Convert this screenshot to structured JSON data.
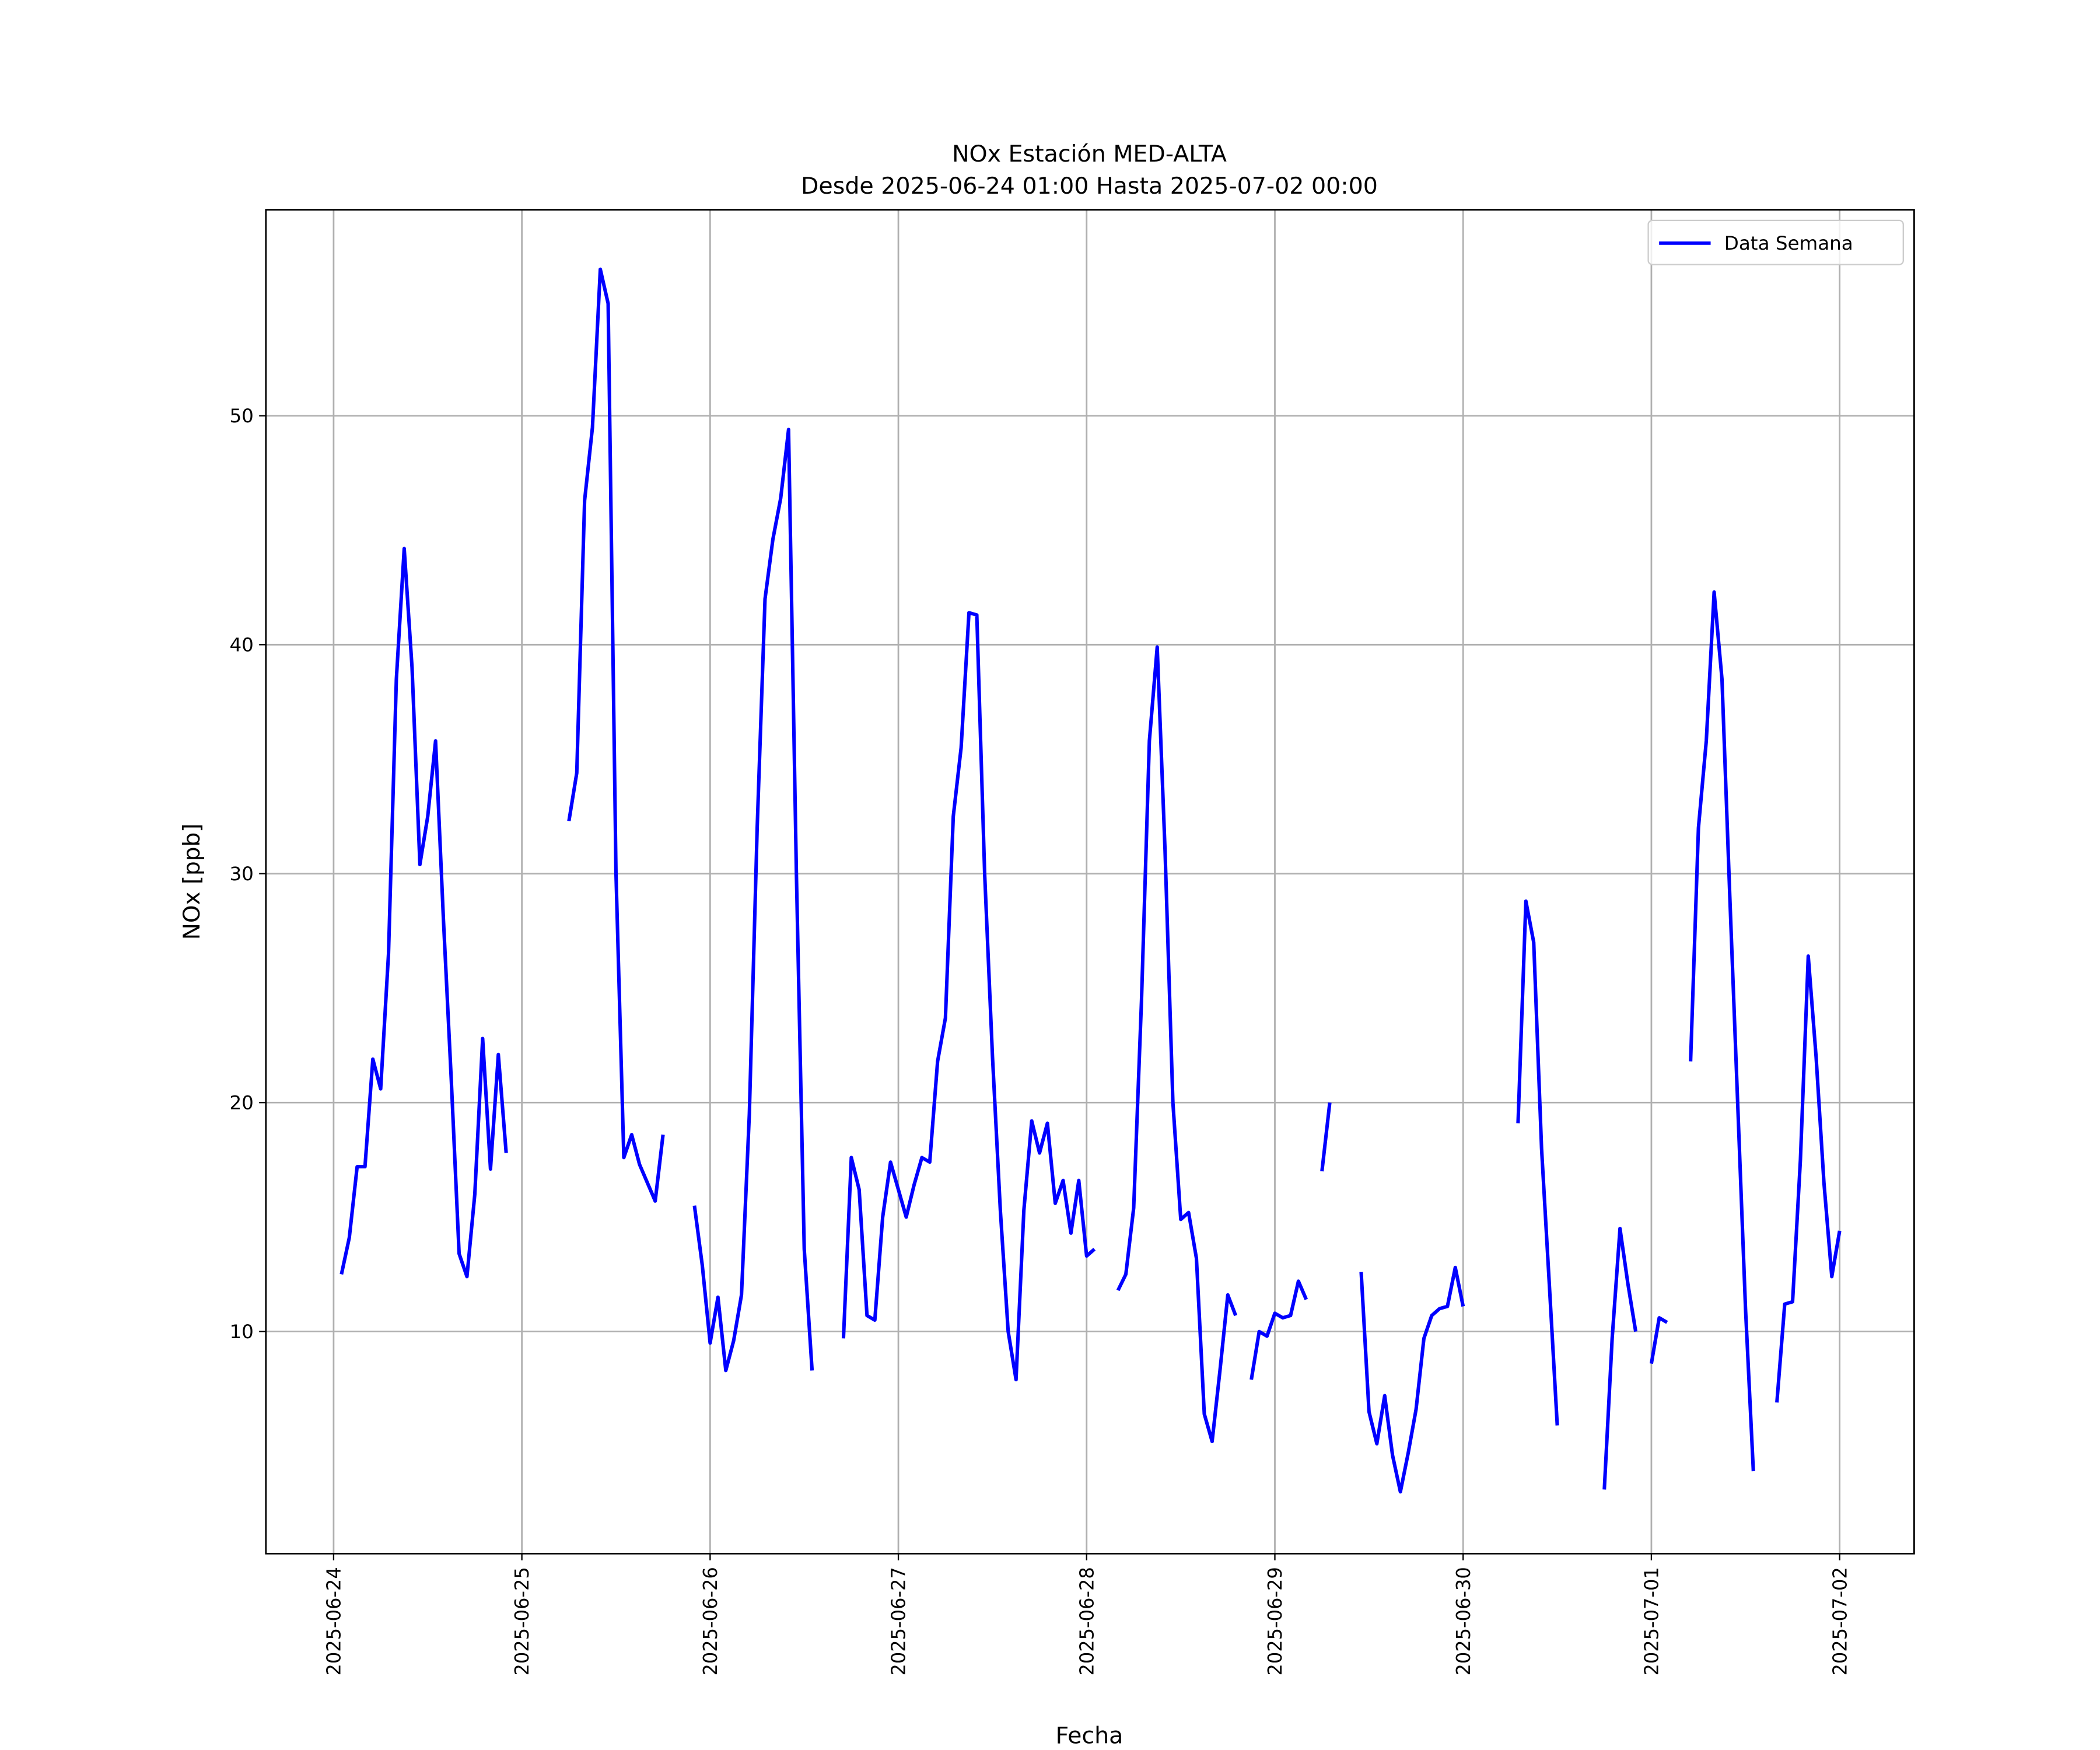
{
  "chart_data": {
    "type": "line",
    "title": "NOx Estación MED-ALTA",
    "subtitle": "Desde 2025-06-24 01:00 Hasta 2025-07-02 00:00",
    "xlabel": "Fecha",
    "ylabel": "NOx [ppb]",
    "legend": "upper right",
    "grid": true,
    "xlim": [
      "2025-06-23 15:22",
      "2025-07-02 09:30"
    ],
    "xticks": [
      "2025-06-24",
      "2025-06-25",
      "2025-06-26",
      "2025-06-27",
      "2025-06-28",
      "2025-06-29",
      "2025-06-30",
      "2025-07-01",
      "2025-07-02"
    ],
    "ylim": [
      0.3,
      59.0
    ],
    "yticks": [
      10,
      20,
      30,
      40,
      50
    ],
    "x": [
      "2025-06-24 01:00",
      "2025-06-24 02:00",
      "2025-06-24 03:00",
      "2025-06-24 04:00",
      "2025-06-24 05:00",
      "2025-06-24 06:00",
      "2025-06-24 07:00",
      "2025-06-24 08:00",
      "2025-06-24 09:00",
      "2025-06-24 10:00",
      "2025-06-24 11:00",
      "2025-06-24 12:00",
      "2025-06-24 13:00",
      "2025-06-24 14:00",
      "2025-06-24 15:00",
      "2025-06-24 16:00",
      "2025-06-24 17:00",
      "2025-06-24 18:00",
      "2025-06-24 19:00",
      "2025-06-24 20:00",
      "2025-06-24 21:00",
      "2025-06-24 22:00",
      "2025-06-24 23:00",
      "2025-06-25 00:00",
      "2025-06-25 01:00",
      "2025-06-25 02:00",
      "2025-06-25 03:00",
      "2025-06-25 04:00",
      "2025-06-25 05:00",
      "2025-06-25 06:00",
      "2025-06-25 07:00",
      "2025-06-25 08:00",
      "2025-06-25 09:00",
      "2025-06-25 10:00",
      "2025-06-25 11:00",
      "2025-06-25 12:00",
      "2025-06-25 13:00",
      "2025-06-25 14:00",
      "2025-06-25 15:00",
      "2025-06-25 16:00",
      "2025-06-25 17:00",
      "2025-06-25 18:00",
      "2025-06-25 19:00",
      "2025-06-25 20:00",
      "2025-06-25 21:00",
      "2025-06-25 22:00",
      "2025-06-25 23:00",
      "2025-06-26 00:00",
      "2025-06-26 01:00",
      "2025-06-26 02:00",
      "2025-06-26 03:00",
      "2025-06-26 04:00",
      "2025-06-26 05:00",
      "2025-06-26 06:00",
      "2025-06-26 07:00",
      "2025-06-26 08:00",
      "2025-06-26 09:00",
      "2025-06-26 10:00",
      "2025-06-26 11:00",
      "2025-06-26 12:00",
      "2025-06-26 13:00",
      "2025-06-26 14:00",
      "2025-06-26 15:00",
      "2025-06-26 16:00",
      "2025-06-26 17:00",
      "2025-06-26 18:00",
      "2025-06-26 19:00",
      "2025-06-26 20:00",
      "2025-06-26 21:00",
      "2025-06-26 22:00",
      "2025-06-26 23:00",
      "2025-06-27 00:00",
      "2025-06-27 01:00",
      "2025-06-27 02:00",
      "2025-06-27 03:00",
      "2025-06-27 04:00",
      "2025-06-27 05:00",
      "2025-06-27 06:00",
      "2025-06-27 07:00",
      "2025-06-27 08:00",
      "2025-06-27 09:00",
      "2025-06-27 10:00",
      "2025-06-27 11:00",
      "2025-06-27 12:00",
      "2025-06-27 13:00",
      "2025-06-27 14:00",
      "2025-06-27 15:00",
      "2025-06-27 16:00",
      "2025-06-27 17:00",
      "2025-06-27 18:00",
      "2025-06-27 19:00",
      "2025-06-27 20:00",
      "2025-06-27 21:00",
      "2025-06-27 22:00",
      "2025-06-27 23:00",
      "2025-06-28 00:00",
      "2025-06-28 01:00",
      "2025-06-28 02:00",
      "2025-06-28 03:00",
      "2025-06-28 04:00",
      "2025-06-28 05:00",
      "2025-06-28 06:00",
      "2025-06-28 07:00",
      "2025-06-28 08:00",
      "2025-06-28 09:00",
      "2025-06-28 10:00",
      "2025-06-28 11:00",
      "2025-06-28 12:00",
      "2025-06-28 13:00",
      "2025-06-28 14:00",
      "2025-06-28 15:00",
      "2025-06-28 16:00",
      "2025-06-28 17:00",
      "2025-06-28 18:00",
      "2025-06-28 19:00",
      "2025-06-28 20:00",
      "2025-06-28 21:00",
      "2025-06-28 22:00",
      "2025-06-28 23:00",
      "2025-06-29 00:00",
      "2025-06-29 01:00",
      "2025-06-29 02:00",
      "2025-06-29 03:00",
      "2025-06-29 04:00",
      "2025-06-29 05:00",
      "2025-06-29 06:00",
      "2025-06-29 07:00",
      "2025-06-29 08:00",
      "2025-06-29 09:00",
      "2025-06-29 10:00",
      "2025-06-29 11:00",
      "2025-06-29 12:00",
      "2025-06-29 13:00",
      "2025-06-29 14:00",
      "2025-06-29 15:00",
      "2025-06-29 16:00",
      "2025-06-29 17:00",
      "2025-06-29 18:00",
      "2025-06-29 19:00",
      "2025-06-29 20:00",
      "2025-06-29 21:00",
      "2025-06-29 22:00",
      "2025-06-29 23:00",
      "2025-06-30 00:00",
      "2025-06-30 01:00",
      "2025-06-30 02:00",
      "2025-06-30 03:00",
      "2025-06-30 04:00",
      "2025-06-30 05:00",
      "2025-06-30 06:00",
      "2025-06-30 07:00",
      "2025-06-30 08:00",
      "2025-06-30 09:00",
      "2025-06-30 10:00",
      "2025-06-30 11:00",
      "2025-06-30 12:00",
      "2025-06-30 13:00",
      "2025-06-30 14:00",
      "2025-06-30 15:00",
      "2025-06-30 16:00",
      "2025-06-30 17:00",
      "2025-06-30 18:00",
      "2025-06-30 19:00",
      "2025-06-30 20:00",
      "2025-06-30 21:00",
      "2025-06-30 22:00",
      "2025-06-30 23:00",
      "2025-07-01 00:00",
      "2025-07-01 01:00",
      "2025-07-01 02:00",
      "2025-07-01 03:00",
      "2025-07-01 04:00",
      "2025-07-01 05:00",
      "2025-07-01 06:00",
      "2025-07-01 07:00",
      "2025-07-01 08:00",
      "2025-07-01 09:00",
      "2025-07-01 10:00",
      "2025-07-01 11:00",
      "2025-07-01 12:00",
      "2025-07-01 13:00",
      "2025-07-01 14:00",
      "2025-07-01 15:00",
      "2025-07-01 16:00",
      "2025-07-01 17:00",
      "2025-07-01 18:00",
      "2025-07-01 19:00",
      "2025-07-01 20:00",
      "2025-07-01 21:00",
      "2025-07-01 22:00",
      "2025-07-01 23:00",
      "2025-07-02 00:00"
    ],
    "series": [
      {
        "name": "Data Semana",
        "color": "#0000ff",
        "values": [
          12.5,
          14.1,
          17.2,
          17.2,
          21.9,
          20.6,
          26.5,
          38.5,
          44.2,
          39,
          30.4,
          32.5,
          35.8,
          28,
          21,
          13.4,
          12.4,
          16,
          22.8,
          17.1,
          22.1,
          17.8,
          null,
          null,
          null,
          null,
          null,
          null,
          null,
          32.3,
          34.4,
          46.3,
          49.5,
          56.4,
          54.9,
          30,
          17.6,
          18.6,
          17.3,
          16.5,
          15.7,
          18.6,
          null,
          null,
          null,
          15.5,
          12.9,
          9.5,
          11.5,
          8.3,
          9.6,
          11.6,
          19.5,
          32,
          42,
          44.6,
          46.4,
          49.4,
          30,
          13.6,
          8.3,
          null,
          null,
          null,
          9.7,
          17.6,
          16.2,
          10.7,
          10.5,
          15,
          17.4,
          16.2,
          15,
          16.4,
          17.6,
          17.4,
          21.8,
          23.7,
          32.5,
          35.5,
          41.4,
          41.3,
          30,
          22,
          15.3,
          10,
          7.9,
          15.3,
          19.2,
          17.8,
          19.1,
          15.6,
          16.6,
          14.3,
          16.6,
          13.3,
          13.6,
          null,
          null,
          11.8,
          12.5,
          15.4,
          24.5,
          35.8,
          39.9,
          31,
          20,
          14.9,
          15.2,
          13.2,
          6.4,
          5.2,
          8.3,
          11.6,
          10.7,
          null,
          7.9,
          10,
          9.8,
          10.8,
          10.6,
          10.7,
          12.2,
          11.4,
          null,
          17,
          20,
          null,
          null,
          null,
          12.6,
          6.5,
          5.1,
          7.2,
          4.6,
          3,
          4.7,
          6.6,
          9.7,
          10.7,
          11,
          11.1,
          12.8,
          11.1,
          null,
          null,
          null,
          null,
          null,
          null,
          19.1,
          28.8,
          27,
          18,
          12,
          5.9,
          null,
          null,
          null,
          null,
          null,
          3.1,
          9.7,
          14.5,
          12.1,
          10,
          null,
          8.6,
          10.6,
          10.4,
          null,
          null,
          21.8,
          32,
          35.8,
          42.3,
          38.5,
          29,
          20,
          11,
          3.9,
          null,
          null,
          6.9,
          11.2,
          11.3,
          17.5,
          26.4,
          22,
          16.5,
          12.4,
          14.4
        ]
      }
    ]
  }
}
